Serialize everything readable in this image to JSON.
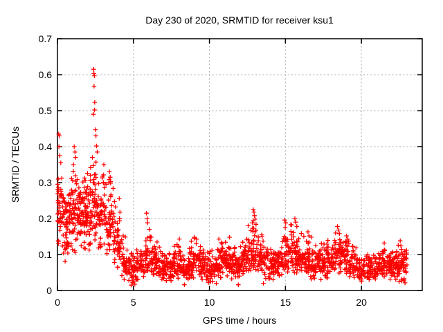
{
  "window": {
    "background": "#ffffff"
  },
  "chart_data": {
    "type": "scatter",
    "title": "Day 230 of 2020, SRMTID for receiver ksu1",
    "xlabel": "GPS time / hours",
    "ylabel": "SRMTID / TECUs",
    "xlim": [
      0,
      24
    ],
    "ylim": [
      0,
      0.7
    ],
    "xticks": [
      0,
      5,
      10,
      15,
      20
    ],
    "xtick_labels": [
      "0",
      "5",
      "10",
      "15",
      "20"
    ],
    "yticks": [
      0,
      0.1,
      0.2,
      0.3,
      0.4,
      0.5,
      0.6,
      0.7
    ],
    "ytick_labels": [
      "0",
      "0.1",
      "0.2",
      "0.3",
      "0.4",
      "0.5",
      "0.6",
      "0.7"
    ],
    "grid": "dotted",
    "legend": "none",
    "marker": "plus",
    "marker_color": "#ff0000",
    "grid_color": "#aaaaaa",
    "axis_color": "#000000",
    "background": "#ffffff",
    "seed": 7,
    "x_data_range": [
      0,
      22.95
    ],
    "density_bins_format": [
      "t_start",
      "t_end",
      "y_min",
      "y_max",
      "y_mode",
      "count"
    ],
    "density_bins": [
      [
        0.0,
        0.3,
        0.1,
        0.32,
        0.21,
        40
      ],
      [
        0.3,
        0.8,
        0.08,
        0.3,
        0.19,
        55
      ],
      [
        0.8,
        1.3,
        0.1,
        0.34,
        0.21,
        60
      ],
      [
        1.3,
        1.8,
        0.09,
        0.32,
        0.2,
        55
      ],
      [
        1.8,
        2.2,
        0.1,
        0.35,
        0.22,
        50
      ],
      [
        2.2,
        2.7,
        0.12,
        0.38,
        0.25,
        55
      ],
      [
        2.7,
        3.2,
        0.1,
        0.35,
        0.22,
        50
      ],
      [
        3.2,
        3.7,
        0.08,
        0.32,
        0.19,
        50
      ],
      [
        3.7,
        4.2,
        0.06,
        0.26,
        0.14,
        45
      ],
      [
        4.2,
        4.7,
        0.03,
        0.16,
        0.08,
        42
      ],
      [
        4.7,
        5.2,
        0.015,
        0.12,
        0.06,
        42
      ],
      [
        5.2,
        5.7,
        0.03,
        0.11,
        0.07,
        36
      ],
      [
        5.7,
        6.2,
        0.04,
        0.18,
        0.08,
        45
      ],
      [
        6.2,
        6.7,
        0.03,
        0.14,
        0.08,
        40
      ],
      [
        6.7,
        7.2,
        0.02,
        0.12,
        0.06,
        42
      ],
      [
        7.2,
        7.7,
        0.02,
        0.12,
        0.07,
        45
      ],
      [
        7.7,
        8.2,
        0.03,
        0.14,
        0.07,
        45
      ],
      [
        8.2,
        8.7,
        0.02,
        0.12,
        0.06,
        45
      ],
      [
        8.7,
        9.2,
        0.03,
        0.15,
        0.08,
        46
      ],
      [
        9.2,
        9.7,
        0.03,
        0.13,
        0.08,
        44
      ],
      [
        9.7,
        10.2,
        0.02,
        0.12,
        0.06,
        44
      ],
      [
        10.2,
        10.7,
        0.03,
        0.13,
        0.07,
        45
      ],
      [
        10.7,
        11.2,
        0.03,
        0.14,
        0.08,
        45
      ],
      [
        11.2,
        11.7,
        0.03,
        0.15,
        0.08,
        45
      ],
      [
        11.7,
        12.2,
        0.03,
        0.13,
        0.07,
        45
      ],
      [
        12.2,
        12.7,
        0.04,
        0.15,
        0.09,
        45
      ],
      [
        12.7,
        13.2,
        0.05,
        0.2,
        0.11,
        50
      ],
      [
        13.2,
        13.7,
        0.04,
        0.16,
        0.09,
        45
      ],
      [
        13.7,
        14.2,
        0.03,
        0.12,
        0.07,
        40
      ],
      [
        14.2,
        14.7,
        0.03,
        0.12,
        0.07,
        42
      ],
      [
        14.7,
        15.2,
        0.04,
        0.18,
        0.09,
        46
      ],
      [
        15.2,
        15.7,
        0.04,
        0.19,
        0.1,
        46
      ],
      [
        15.7,
        16.2,
        0.04,
        0.17,
        0.09,
        45
      ],
      [
        16.2,
        16.7,
        0.03,
        0.15,
        0.08,
        42
      ],
      [
        16.7,
        17.2,
        0.03,
        0.13,
        0.07,
        42
      ],
      [
        17.2,
        17.7,
        0.03,
        0.14,
        0.08,
        44
      ],
      [
        17.7,
        18.2,
        0.03,
        0.15,
        0.08,
        45
      ],
      [
        18.2,
        18.7,
        0.04,
        0.17,
        0.1,
        46
      ],
      [
        18.7,
        19.2,
        0.04,
        0.15,
        0.09,
        45
      ],
      [
        19.2,
        19.7,
        0.03,
        0.13,
        0.07,
        42
      ],
      [
        19.7,
        20.2,
        0.02,
        0.11,
        0.06,
        40
      ],
      [
        20.2,
        20.7,
        0.02,
        0.11,
        0.06,
        40
      ],
      [
        20.7,
        21.2,
        0.03,
        0.11,
        0.06,
        40
      ],
      [
        21.2,
        21.7,
        0.03,
        0.12,
        0.07,
        40
      ],
      [
        21.7,
        22.2,
        0.03,
        0.12,
        0.07,
        42
      ],
      [
        22.2,
        22.6,
        0.02,
        0.13,
        0.07,
        45
      ],
      [
        22.6,
        22.95,
        0.02,
        0.13,
        0.08,
        40
      ]
    ],
    "notable_points": [
      [
        0.08,
        0.435
      ],
      [
        0.12,
        0.43
      ],
      [
        0.1,
        0.4
      ],
      [
        0.15,
        0.375
      ],
      [
        0.22,
        0.355
      ],
      [
        0.05,
        0.31
      ],
      [
        1.1,
        0.4
      ],
      [
        1.15,
        0.385
      ],
      [
        1.2,
        0.37
      ],
      [
        1.05,
        0.35
      ],
      [
        2.38,
        0.615
      ],
      [
        2.4,
        0.603
      ],
      [
        2.43,
        0.597
      ],
      [
        2.41,
        0.568
      ],
      [
        2.45,
        0.523
      ],
      [
        2.44,
        0.502
      ],
      [
        2.36,
        0.49
      ],
      [
        2.5,
        0.447
      ],
      [
        2.53,
        0.43
      ],
      [
        2.57,
        0.402
      ],
      [
        2.62,
        0.385
      ],
      [
        2.3,
        0.37
      ],
      [
        3.05,
        0.35
      ],
      [
        3.42,
        0.33
      ],
      [
        3.47,
        0.315
      ],
      [
        3.38,
        0.3
      ],
      [
        5.86,
        0.215
      ],
      [
        5.9,
        0.2
      ],
      [
        5.93,
        0.188
      ],
      [
        6.05,
        0.17
      ],
      [
        12.88,
        0.225
      ],
      [
        12.93,
        0.218
      ],
      [
        12.96,
        0.208
      ],
      [
        13.0,
        0.198
      ],
      [
        12.83,
        0.188
      ],
      [
        12.55,
        0.18
      ],
      [
        14.95,
        0.196
      ],
      [
        15.02,
        0.188
      ],
      [
        15.35,
        0.183
      ],
      [
        15.62,
        0.2
      ],
      [
        15.68,
        0.19
      ],
      [
        15.75,
        0.178
      ],
      [
        16.48,
        0.163
      ],
      [
        16.55,
        0.152
      ],
      [
        18.42,
        0.178
      ],
      [
        18.48,
        0.168
      ],
      [
        18.55,
        0.158
      ],
      [
        19.02,
        0.152
      ],
      [
        19.1,
        0.143
      ],
      [
        9.0,
        0.148
      ],
      [
        8.02,
        0.143
      ],
      [
        11.32,
        0.148
      ],
      [
        10.62,
        0.143
      ],
      [
        22.55,
        0.138
      ],
      [
        21.5,
        0.132
      ],
      [
        4.85,
        0.015
      ],
      [
        4.95,
        0.022
      ],
      [
        8.35,
        0.016
      ],
      [
        10.45,
        0.02
      ],
      [
        11.9,
        0.016
      ],
      [
        13.55,
        0.02
      ],
      [
        4.7,
        0.028
      ]
    ]
  }
}
